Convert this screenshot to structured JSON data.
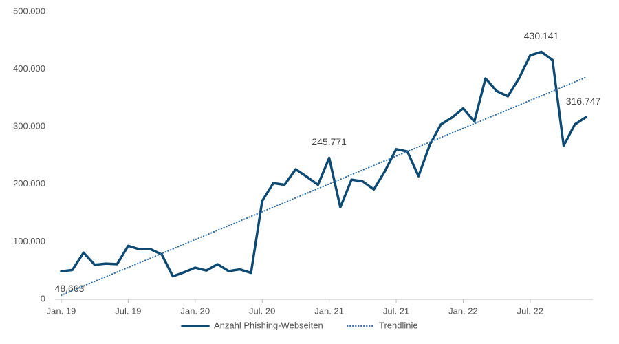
{
  "chart_data": {
    "type": "line",
    "categories": [
      "Jan. 19",
      null,
      null,
      null,
      null,
      null,
      "Jul. 19",
      null,
      null,
      null,
      null,
      null,
      "Jan. 20",
      null,
      null,
      null,
      null,
      null,
      "Jul. 20",
      null,
      null,
      null,
      null,
      null,
      "Jan. 21",
      null,
      null,
      null,
      null,
      null,
      "Jul. 21",
      null,
      null,
      null,
      null,
      null,
      "Jan. 22",
      null,
      null,
      null,
      null,
      null,
      "Jul. 22",
      null,
      null,
      null,
      null,
      null
    ],
    "series": [
      {
        "name": "Anzahl Phishing-Webseiten",
        "color": "#0d4a73",
        "style": "solid",
        "values": [
          48663,
          51000,
          81000,
          60000,
          62000,
          61000,
          93000,
          87000,
          87000,
          78000,
          40000,
          47000,
          55000,
          50000,
          61000,
          49000,
          52000,
          46000,
          171000,
          202000,
          199000,
          226000,
          213000,
          199000,
          245771,
          160000,
          208000,
          205000,
          191000,
          223000,
          261000,
          257000,
          214000,
          268000,
          304000,
          316000,
          332000,
          309000,
          384000,
          362000,
          353000,
          384000,
          424000,
          430141,
          416000,
          267000,
          304000,
          316747
        ],
        "value_labels": [
          "48.663",
          null,
          null,
          null,
          null,
          null,
          null,
          null,
          null,
          null,
          null,
          null,
          null,
          null,
          null,
          null,
          null,
          null,
          null,
          null,
          null,
          null,
          null,
          null,
          "245.771",
          null,
          null,
          null,
          null,
          null,
          null,
          null,
          null,
          null,
          null,
          null,
          null,
          null,
          null,
          null,
          null,
          null,
          null,
          "430.141",
          null,
          null,
          null,
          "316.747"
        ]
      },
      {
        "name": "Trendlinie",
        "color": "#2e6da4",
        "style": "dotted",
        "values": [
          7000,
          15064,
          23128,
          31192,
          39256,
          47320,
          55384,
          63448,
          71512,
          79576,
          87640,
          95704,
          103768,
          111832,
          119896,
          127960,
          136024,
          144088,
          152152,
          160216,
          168280,
          176344,
          184408,
          192472,
          200536,
          208600,
          216664,
          224728,
          232792,
          240856,
          248920,
          256984,
          265048,
          273112,
          281176,
          289240,
          297304,
          305368,
          313432,
          321496,
          329560,
          337624,
          345688,
          353752,
          361816,
          369880,
          377944,
          386008
        ]
      }
    ],
    "ylim": [
      0,
      500000
    ],
    "yticks": [
      0,
      {
        "value": 100000,
        "label": "100.000"
      },
      {
        "value": 200000,
        "label": "200.000"
      },
      {
        "value": 300000,
        "label": "300.000"
      },
      {
        "value": 400000,
        "label": "400.000"
      },
      {
        "value": 500000,
        "label": "500.000"
      }
    ],
    "grid": false,
    "legend": "bottom"
  }
}
